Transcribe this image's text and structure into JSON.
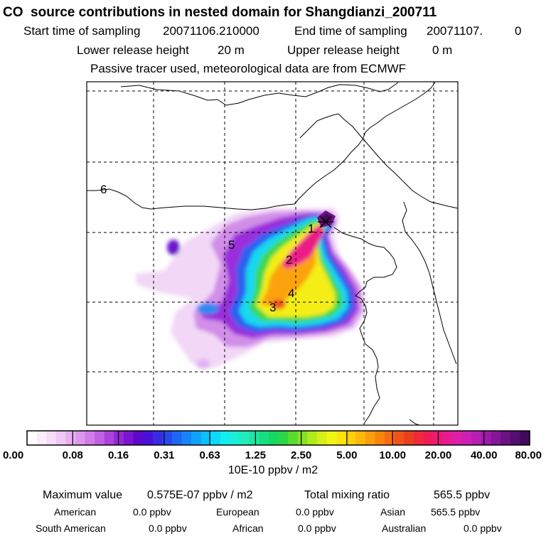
{
  "header": {
    "title": "CO  source contributions in nested domain for Shangdianzi_200711",
    "start_label": "Start time of sampling",
    "start_value": "20071106.210000",
    "end_label": "End time of sampling",
    "end_value": "20071107.",
    "end_value_2": "0",
    "lower_label": "Lower release height",
    "lower_value": "20 m",
    "upper_label": "Upper release height",
    "upper_value": "0 m",
    "tracer_note": "Passive tracer used, meteorological data are from ECMWF"
  },
  "chart_data": {
    "type": "heatmap",
    "title": "CO  source contributions in nested domain for Shangdianzi_200711",
    "colorbar": {
      "unit": "10E-10 ppbv / m2",
      "tick_labels": [
        "0.00",
        "0.08",
        "0.16",
        "0.31",
        "0.63",
        "1.25",
        "2.50",
        "5.00",
        "10.00",
        "20.00",
        "40.00",
        "80.00"
      ],
      "tick_values": [
        0.0,
        0.08,
        0.16,
        0.31,
        0.63,
        1.25,
        2.5,
        5.0,
        10.0,
        20.0,
        40.0,
        80.0
      ],
      "colors": [
        "#ffffff",
        "#fbeefb",
        "#f6ddf8",
        "#efc8f5",
        "#e7b0f2",
        "#dd98ee",
        "#d07de9",
        "#c060e4",
        "#ad42df",
        "#9627d9",
        "#7c14d2",
        "#5e08cb",
        "#4a10d8",
        "#3a2ae4",
        "#2a48ee",
        "#1e66f4",
        "#1584f8",
        "#10a2fa",
        "#0dbffb",
        "#0ddaf8",
        "#12eded",
        "#1deed6",
        "#20ecbc",
        "#1ee6a0",
        "#18de82",
        "#14d862",
        "#2ad646",
        "#58dc30",
        "#84e224",
        "#aeea1c",
        "#d4f018",
        "#f2f414",
        "#fce410",
        "#fcd00e",
        "#fcb80c",
        "#fc9e0c",
        "#fa840e",
        "#f66c12",
        "#f05418",
        "#e8401e",
        "#ee2a3a",
        "#f01c5a",
        "#ee1878",
        "#e81a94",
        "#dc1ea8",
        "#cc20b4",
        "#b61eb4",
        "#9c1aa8",
        "#841698",
        "#6c1284",
        "#560e70",
        "#420a5c"
      ]
    },
    "map_labels": [
      "1",
      "2",
      "3",
      "4",
      "5",
      "6"
    ]
  },
  "footer": {
    "max_label": "Maximum value",
    "max_value": "0.575E-07 ppbv / m2",
    "total_label": "Total mixing ratio",
    "total_value": "565.5 ppbv",
    "regions": [
      {
        "name": "American",
        "value": "0.0 ppbv"
      },
      {
        "name": "European",
        "value": "0.0 ppbv"
      },
      {
        "name": "Asian",
        "value": "565.5 ppbv"
      },
      {
        "name": "South American",
        "value": "0.0 ppbv"
      },
      {
        "name": "African",
        "value": "0.0 ppbv"
      },
      {
        "name": "Australian",
        "value": "0.0 ppbv"
      }
    ]
  }
}
